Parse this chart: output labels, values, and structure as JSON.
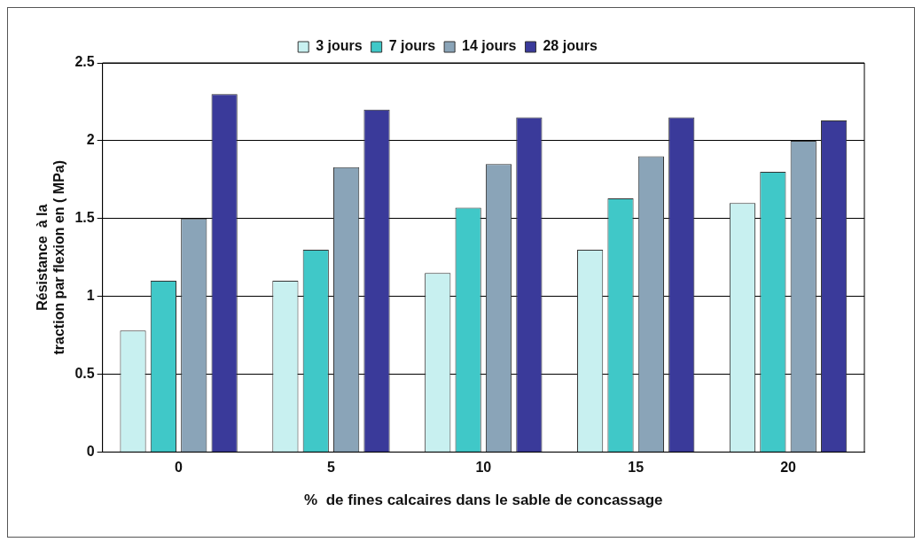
{
  "chart_data": {
    "type": "bar",
    "xlabel": "%  de fines calcaires dans le sable de concassage",
    "ylabel": "Résistance  à la traction par flexion en ( MPa)",
    "categories": [
      "0",
      "5",
      "10",
      "15",
      "20"
    ],
    "series": [
      {
        "name": "3 jours",
        "color": "#c8f0f0",
        "values": [
          0.78,
          1.1,
          1.15,
          1.3,
          1.6
        ]
      },
      {
        "name": "7 jours",
        "color": "#40c8c8",
        "values": [
          1.1,
          1.3,
          1.57,
          1.63,
          1.8
        ]
      },
      {
        "name": "14 jours",
        "color": "#8aa4b8",
        "values": [
          1.5,
          1.83,
          1.85,
          1.9,
          2.0
        ]
      },
      {
        "name": "28 jours",
        "color": "#3a3a9a",
        "values": [
          2.3,
          2.2,
          2.15,
          2.15,
          2.13
        ]
      }
    ],
    "ylim": [
      0,
      2.5
    ],
    "yticks": [
      0,
      0.5,
      1,
      1.5,
      2,
      2.5
    ],
    "grid": "y",
    "legend": "top"
  }
}
